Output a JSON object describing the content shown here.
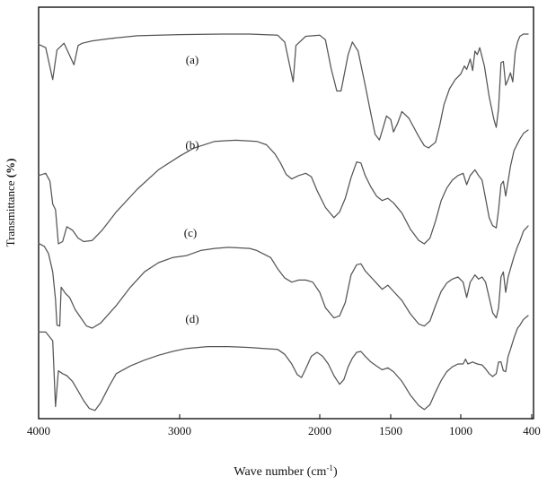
{
  "chart_data": {
    "type": "line",
    "title": "",
    "xlabel": "Wave number (cm",
    "xlabel_sup": "-1",
    "xlabel_tail": ")",
    "ylabel": "Transmittance ",
    "ylabel_unit": "(%)",
    "xlim": [
      4000,
      400
    ],
    "x_reversed": true,
    "ticks": [
      {
        "label": "4000",
        "value": 4000
      },
      {
        "label": "3000",
        "value": 3000
      },
      {
        "label": "2000",
        "value": 2000
      },
      {
        "label": "1500",
        "value": 1500
      },
      {
        "label": "1000",
        "value": 1000
      },
      {
        "label": "400",
        "value": 400
      }
    ],
    "grid": false,
    "legend": "none",
    "colors": {
      "trace": "#555555",
      "axis": "#000000"
    },
    "series": [
      {
        "name": "(a)",
        "points": [
          [
            4000,
            0.91
          ],
          [
            3950,
            0.88
          ],
          [
            3900,
            0.6
          ],
          [
            3870,
            0.86
          ],
          [
            3820,
            0.92
          ],
          [
            3750,
            0.73
          ],
          [
            3720,
            0.9
          ],
          [
            3690,
            0.92
          ],
          [
            3620,
            0.94
          ],
          [
            3500,
            0.96
          ],
          [
            3300,
            0.985
          ],
          [
            3000,
            0.995
          ],
          [
            2700,
            1.0
          ],
          [
            2500,
            1.0
          ],
          [
            2300,
            0.99
          ],
          [
            2250,
            0.93
          ],
          [
            2190,
            0.58
          ],
          [
            2170,
            0.9
          ],
          [
            2100,
            0.98
          ],
          [
            2000,
            0.99
          ],
          [
            1960,
            0.95
          ],
          [
            1920,
            0.7
          ],
          [
            1880,
            0.5
          ],
          [
            1850,
            0.5
          ],
          [
            1800,
            0.82
          ],
          [
            1770,
            0.93
          ],
          [
            1730,
            0.85
          ],
          [
            1680,
            0.55
          ],
          [
            1640,
            0.3
          ],
          [
            1610,
            0.12
          ],
          [
            1580,
            0.07
          ],
          [
            1560,
            0.15
          ],
          [
            1530,
            0.28
          ],
          [
            1500,
            0.25
          ],
          [
            1480,
            0.14
          ],
          [
            1450,
            0.22
          ],
          [
            1420,
            0.32
          ],
          [
            1370,
            0.26
          ],
          [
            1300,
            0.1
          ],
          [
            1260,
            0.02
          ],
          [
            1230,
            0.0
          ],
          [
            1180,
            0.05
          ],
          [
            1150,
            0.2
          ],
          [
            1120,
            0.38
          ],
          [
            1080,
            0.52
          ],
          [
            1040,
            0.6
          ],
          [
            1000,
            0.65
          ],
          [
            970,
            0.72
          ],
          [
            950,
            0.69
          ],
          [
            920,
            0.78
          ],
          [
            900,
            0.68
          ],
          [
            880,
            0.85
          ],
          [
            860,
            0.82
          ],
          [
            840,
            0.88
          ],
          [
            800,
            0.72
          ],
          [
            760,
            0.45
          ],
          [
            720,
            0.25
          ],
          [
            700,
            0.18
          ],
          [
            680,
            0.35
          ],
          [
            660,
            0.75
          ],
          [
            640,
            0.76
          ],
          [
            620,
            0.55
          ],
          [
            600,
            0.6
          ],
          [
            580,
            0.66
          ],
          [
            560,
            0.58
          ],
          [
            540,
            0.84
          ],
          [
            520,
            0.93
          ],
          [
            500,
            0.98
          ],
          [
            470,
            1.0
          ],
          [
            430,
            1.0
          ]
        ]
      },
      {
        "name": "(b)",
        "points": [
          [
            4000,
            0.6
          ],
          [
            3950,
            0.62
          ],
          [
            3920,
            0.55
          ],
          [
            3900,
            0.35
          ],
          [
            3880,
            0.3
          ],
          [
            3860,
            0.0
          ],
          [
            3830,
            0.02
          ],
          [
            3800,
            0.15
          ],
          [
            3760,
            0.12
          ],
          [
            3720,
            0.05
          ],
          [
            3680,
            0.02
          ],
          [
            3620,
            0.03
          ],
          [
            3550,
            0.12
          ],
          [
            3450,
            0.28
          ],
          [
            3300,
            0.48
          ],
          [
            3150,
            0.65
          ],
          [
            3000,
            0.77
          ],
          [
            2900,
            0.84
          ],
          [
            2750,
            0.9
          ],
          [
            2600,
            0.91
          ],
          [
            2450,
            0.9
          ],
          [
            2380,
            0.87
          ],
          [
            2320,
            0.79
          ],
          [
            2280,
            0.71
          ],
          [
            2240,
            0.61
          ],
          [
            2200,
            0.57
          ],
          [
            2150,
            0.6
          ],
          [
            2100,
            0.62
          ],
          [
            2060,
            0.59
          ],
          [
            2020,
            0.47
          ],
          [
            1960,
            0.32
          ],
          [
            1900,
            0.23
          ],
          [
            1860,
            0.28
          ],
          [
            1820,
            0.4
          ],
          [
            1780,
            0.58
          ],
          [
            1740,
            0.72
          ],
          [
            1710,
            0.71
          ],
          [
            1680,
            0.6
          ],
          [
            1640,
            0.5
          ],
          [
            1600,
            0.42
          ],
          [
            1560,
            0.38
          ],
          [
            1520,
            0.4
          ],
          [
            1480,
            0.36
          ],
          [
            1420,
            0.27
          ],
          [
            1360,
            0.13
          ],
          [
            1300,
            0.03
          ],
          [
            1260,
            0.0
          ],
          [
            1220,
            0.05
          ],
          [
            1180,
            0.2
          ],
          [
            1140,
            0.38
          ],
          [
            1100,
            0.49
          ],
          [
            1060,
            0.56
          ],
          [
            1020,
            0.6
          ],
          [
            980,
            0.62
          ],
          [
            950,
            0.52
          ],
          [
            920,
            0.6
          ],
          [
            880,
            0.65
          ],
          [
            850,
            0.6
          ],
          [
            820,
            0.56
          ],
          [
            790,
            0.4
          ],
          [
            760,
            0.23
          ],
          [
            730,
            0.16
          ],
          [
            700,
            0.14
          ],
          [
            680,
            0.3
          ],
          [
            660,
            0.52
          ],
          [
            640,
            0.55
          ],
          [
            620,
            0.42
          ],
          [
            600,
            0.55
          ],
          [
            580,
            0.68
          ],
          [
            550,
            0.82
          ],
          [
            520,
            0.88
          ],
          [
            500,
            0.92
          ],
          [
            470,
            0.97
          ],
          [
            430,
            1.0
          ]
        ]
      },
      {
        "name": "(c)",
        "points": [
          [
            4000,
            0.83
          ],
          [
            3960,
            0.8
          ],
          [
            3930,
            0.73
          ],
          [
            3900,
            0.55
          ],
          [
            3880,
            0.28
          ],
          [
            3870,
            0.03
          ],
          [
            3850,
            0.02
          ],
          [
            3840,
            0.4
          ],
          [
            3810,
            0.34
          ],
          [
            3780,
            0.3
          ],
          [
            3740,
            0.18
          ],
          [
            3700,
            0.1
          ],
          [
            3660,
            0.02
          ],
          [
            3620,
            0.0
          ],
          [
            3560,
            0.05
          ],
          [
            3450,
            0.22
          ],
          [
            3350,
            0.4
          ],
          [
            3250,
            0.55
          ],
          [
            3150,
            0.64
          ],
          [
            3050,
            0.69
          ],
          [
            2950,
            0.71
          ],
          [
            2850,
            0.76
          ],
          [
            2750,
            0.78
          ],
          [
            2650,
            0.79
          ],
          [
            2500,
            0.78
          ],
          [
            2450,
            0.76
          ],
          [
            2350,
            0.69
          ],
          [
            2300,
            0.58
          ],
          [
            2250,
            0.49
          ],
          [
            2200,
            0.45
          ],
          [
            2150,
            0.47
          ],
          [
            2100,
            0.47
          ],
          [
            2050,
            0.45
          ],
          [
            2000,
            0.35
          ],
          [
            1960,
            0.2
          ],
          [
            1900,
            0.1
          ],
          [
            1860,
            0.12
          ],
          [
            1820,
            0.25
          ],
          [
            1780,
            0.52
          ],
          [
            1740,
            0.62
          ],
          [
            1710,
            0.63
          ],
          [
            1680,
            0.56
          ],
          [
            1640,
            0.5
          ],
          [
            1600,
            0.44
          ],
          [
            1560,
            0.38
          ],
          [
            1520,
            0.42
          ],
          [
            1480,
            0.36
          ],
          [
            1420,
            0.27
          ],
          [
            1360,
            0.14
          ],
          [
            1300,
            0.04
          ],
          [
            1260,
            0.02
          ],
          [
            1220,
            0.07
          ],
          [
            1180,
            0.22
          ],
          [
            1140,
            0.36
          ],
          [
            1100,
            0.44
          ],
          [
            1060,
            0.48
          ],
          [
            1020,
            0.5
          ],
          [
            980,
            0.45
          ],
          [
            950,
            0.3
          ],
          [
            920,
            0.45
          ],
          [
            880,
            0.52
          ],
          [
            850,
            0.48
          ],
          [
            820,
            0.5
          ],
          [
            790,
            0.45
          ],
          [
            760,
            0.3
          ],
          [
            730,
            0.15
          ],
          [
            700,
            0.1
          ],
          [
            680,
            0.2
          ],
          [
            660,
            0.5
          ],
          [
            640,
            0.55
          ],
          [
            620,
            0.35
          ],
          [
            600,
            0.5
          ],
          [
            580,
            0.58
          ],
          [
            550,
            0.7
          ],
          [
            520,
            0.8
          ],
          [
            500,
            0.85
          ],
          [
            470,
            0.95
          ],
          [
            430,
            1.0
          ]
        ]
      },
      {
        "name": "(d)",
        "points": [
          [
            4000,
            0.83
          ],
          [
            3950,
            0.83
          ],
          [
            3900,
            0.74
          ],
          [
            3880,
            0.06
          ],
          [
            3860,
            0.43
          ],
          [
            3830,
            0.4
          ],
          [
            3800,
            0.38
          ],
          [
            3760,
            0.32
          ],
          [
            3720,
            0.22
          ],
          [
            3680,
            0.12
          ],
          [
            3640,
            0.04
          ],
          [
            3600,
            0.02
          ],
          [
            3560,
            0.1
          ],
          [
            3500,
            0.27
          ],
          [
            3450,
            0.4
          ],
          [
            3350,
            0.48
          ],
          [
            3250,
            0.54
          ],
          [
            3150,
            0.59
          ],
          [
            3050,
            0.63
          ],
          [
            2950,
            0.66
          ],
          [
            2800,
            0.68
          ],
          [
            2650,
            0.68
          ],
          [
            2500,
            0.67
          ],
          [
            2400,
            0.66
          ],
          [
            2300,
            0.65
          ],
          [
            2250,
            0.6
          ],
          [
            2200,
            0.5
          ],
          [
            2160,
            0.39
          ],
          [
            2130,
            0.36
          ],
          [
            2100,
            0.45
          ],
          [
            2060,
            0.58
          ],
          [
            2020,
            0.62
          ],
          [
            1980,
            0.58
          ],
          [
            1940,
            0.5
          ],
          [
            1900,
            0.38
          ],
          [
            1860,
            0.29
          ],
          [
            1830,
            0.34
          ],
          [
            1800,
            0.47
          ],
          [
            1770,
            0.56
          ],
          [
            1740,
            0.62
          ],
          [
            1710,
            0.63
          ],
          [
            1680,
            0.58
          ],
          [
            1640,
            0.52
          ],
          [
            1600,
            0.48
          ],
          [
            1560,
            0.44
          ],
          [
            1520,
            0.46
          ],
          [
            1480,
            0.42
          ],
          [
            1420,
            0.32
          ],
          [
            1360,
            0.18
          ],
          [
            1300,
            0.07
          ],
          [
            1260,
            0.03
          ],
          [
            1220,
            0.08
          ],
          [
            1180,
            0.21
          ],
          [
            1140,
            0.33
          ],
          [
            1100,
            0.42
          ],
          [
            1060,
            0.47
          ],
          [
            1020,
            0.5
          ],
          [
            980,
            0.5
          ],
          [
            960,
            0.55
          ],
          [
            940,
            0.5
          ],
          [
            900,
            0.52
          ],
          [
            860,
            0.5
          ],
          [
            820,
            0.49
          ],
          [
            790,
            0.45
          ],
          [
            760,
            0.4
          ],
          [
            730,
            0.37
          ],
          [
            700,
            0.4
          ],
          [
            680,
            0.52
          ],
          [
            660,
            0.52
          ],
          [
            640,
            0.43
          ],
          [
            620,
            0.42
          ],
          [
            600,
            0.58
          ],
          [
            580,
            0.65
          ],
          [
            550,
            0.77
          ],
          [
            520,
            0.87
          ],
          [
            500,
            0.9
          ],
          [
            470,
            0.96
          ],
          [
            430,
            1.0
          ]
        ]
      }
    ]
  }
}
